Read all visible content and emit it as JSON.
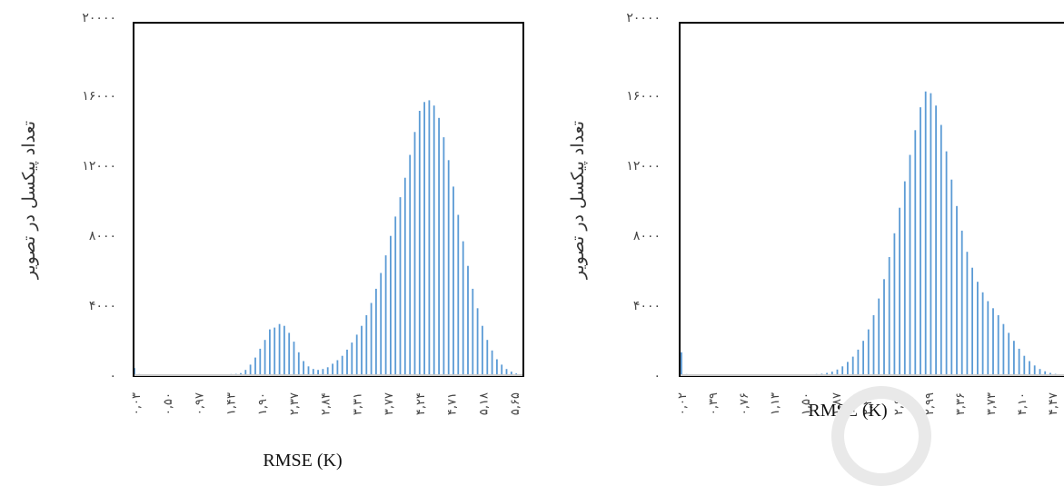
{
  "chart_data": [
    {
      "type": "bar",
      "xlabel": "RMSE (K)",
      "ylabel": "تعداد پیکسل در تصویر",
      "ylim": [
        0,
        20000
      ],
      "y_ticks": [
        "۰",
        "۴۰۰۰",
        "۸۰۰۰",
        "۱۲۰۰۰",
        "۱۶۰۰۰",
        "۲۰۰۰۰"
      ],
      "x_ticks": [
        "۰,۰۳",
        "۰,۵۰",
        "۰,۹۷",
        "۱,۴۳",
        "۱,۹۰",
        "۲,۳۷",
        "۲,۸۴",
        "۳,۳۱",
        "۳,۷۷",
        "۴,۲۴",
        "۴,۷۱",
        "۵,۱۸",
        "۵,۶۵"
      ],
      "x_range": [
        0.03,
        5.65
      ],
      "bar_color": "#5b9bd5",
      "x": [
        0.03,
        0.1,
        0.17,
        0.24,
        0.31,
        0.38,
        0.45,
        0.52,
        0.59,
        0.66,
        0.73,
        0.8,
        0.87,
        0.94,
        1.01,
        1.08,
        1.15,
        1.22,
        1.29,
        1.36,
        1.43,
        1.5,
        1.57,
        1.64,
        1.71,
        1.78,
        1.85,
        1.92,
        1.99,
        2.06,
        2.13,
        2.2,
        2.27,
        2.34,
        2.41,
        2.48,
        2.55,
        2.62,
        2.69,
        2.76,
        2.83,
        2.9,
        2.97,
        3.04,
        3.11,
        3.18,
        3.25,
        3.32,
        3.39,
        3.46,
        3.53,
        3.6,
        3.67,
        3.74,
        3.81,
        3.88,
        3.95,
        4.02,
        4.09,
        4.16,
        4.23,
        4.3,
        4.37,
        4.44,
        4.51,
        4.58,
        4.65,
        4.72,
        4.79,
        4.86,
        4.93,
        5.0,
        5.07,
        5.14,
        5.21,
        5.28,
        5.35,
        5.42,
        5.49,
        5.56,
        5.63
      ],
      "values": [
        400,
        60,
        50,
        50,
        50,
        50,
        50,
        50,
        50,
        50,
        50,
        50,
        50,
        50,
        50,
        50,
        50,
        50,
        50,
        50,
        60,
        70,
        120,
        300,
        600,
        1000,
        1500,
        2000,
        2600,
        2700,
        2900,
        2800,
        2400,
        1900,
        1300,
        800,
        500,
        350,
        300,
        350,
        450,
        650,
        850,
        1100,
        1450,
        1850,
        2300,
        2800,
        3400,
        4100,
        4900,
        5800,
        6800,
        7900,
        9000,
        10100,
        11200,
        12500,
        13800,
        15000,
        15500,
        15600,
        15300,
        14600,
        13500,
        12200,
        10700,
        9100,
        7600,
        6200,
        4900,
        3800,
        2800,
        2000,
        1400,
        900,
        600,
        350,
        200,
        100,
        50
      ]
    },
    {
      "type": "bar",
      "xlabel": "RMSE (K)",
      "ylabel": "تعداد پیکسل در تصویر",
      "ylim": [
        0,
        20000
      ],
      "y_ticks": [
        "۰",
        "۴۰۰۰",
        "۸۰۰۰",
        "۱۲۰۰۰",
        "۱۶۰۰۰",
        "۲۰۰۰۰"
      ],
      "x_ticks": [
        "۰,۰۲",
        "۰,۳۹",
        "۰,۷۶",
        "۱,۱۳",
        "۱,۵۰",
        "۱,۸۷",
        "۲,۲۴",
        "۲,۶۱",
        "۲,۹۹",
        "۳,۳۶",
        "۳,۷۳",
        "۴,۱۰",
        "۴,۴۷"
      ],
      "x_range": [
        0.02,
        4.47
      ],
      "bar_color": "#5b9bd5",
      "x": [
        0.02,
        0.08,
        0.14,
        0.2,
        0.26,
        0.32,
        0.38,
        0.44,
        0.5,
        0.56,
        0.62,
        0.68,
        0.74,
        0.8,
        0.86,
        0.92,
        0.98,
        1.04,
        1.1,
        1.16,
        1.22,
        1.28,
        1.34,
        1.4,
        1.46,
        1.52,
        1.58,
        1.64,
        1.7,
        1.76,
        1.82,
        1.88,
        1.94,
        2.0,
        2.06,
        2.12,
        2.18,
        2.24,
        2.3,
        2.36,
        2.42,
        2.48,
        2.54,
        2.6,
        2.66,
        2.72,
        2.78,
        2.84,
        2.9,
        2.96,
        3.02,
        3.08,
        3.14,
        3.2,
        3.26,
        3.32,
        3.38,
        3.44,
        3.5,
        3.56,
        3.62,
        3.68,
        3.74,
        3.8,
        3.86,
        3.92,
        3.98,
        4.04,
        4.1,
        4.16,
        4.22,
        4.28,
        4.34,
        4.4,
        4.46
      ],
      "values": [
        1300,
        60,
        50,
        50,
        50,
        50,
        50,
        50,
        50,
        50,
        50,
        50,
        50,
        50,
        50,
        50,
        50,
        50,
        50,
        50,
        50,
        50,
        50,
        50,
        50,
        50,
        60,
        80,
        130,
        200,
        320,
        500,
        750,
        1050,
        1450,
        1950,
        2600,
        3400,
        4350,
        5450,
        6700,
        8050,
        9500,
        11000,
        12500,
        13900,
        15200,
        16100,
        16000,
        15300,
        14200,
        12700,
        11100,
        9600,
        8200,
        7000,
        6100,
        5300,
        4700,
        4200,
        3800,
        3400,
        2900,
        2400,
        1950,
        1500,
        1100,
        800,
        550,
        350,
        220,
        130,
        70,
        50,
        40
      ]
    }
  ]
}
